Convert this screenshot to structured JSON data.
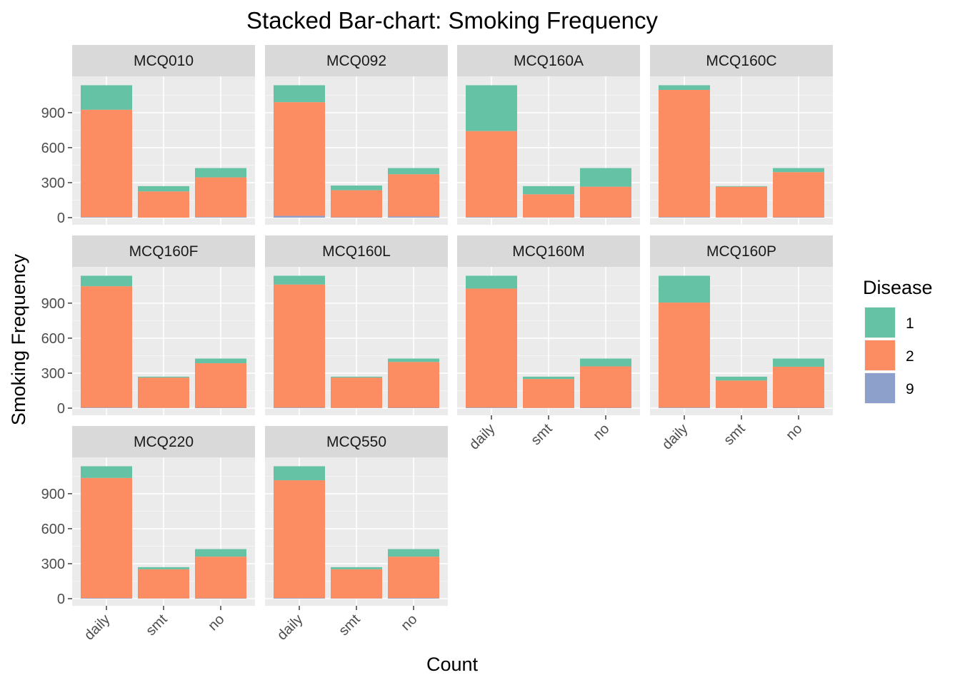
{
  "chart_data": {
    "type": "bar",
    "stacked": true,
    "title": "Stacked Bar-chart: Smoking Frequency",
    "xlabel": "Count",
    "ylabel": "Smoking Frequency",
    "categories": [
      "daily",
      "smt",
      "no"
    ],
    "ylim": [
      0,
      1150
    ],
    "yticks": [
      0,
      300,
      600,
      900
    ],
    "grid": true,
    "legend": {
      "title": "Disease",
      "position": "right",
      "entries": [
        {
          "label": "1",
          "color": "#66C2A5"
        },
        {
          "label": "2",
          "color": "#FC8D62"
        },
        {
          "label": "9",
          "color": "#8DA0CB"
        }
      ]
    },
    "colors": {
      "panel_bg": "#EBEBEB",
      "strip_bg": "#D9D9D9",
      "grid": "#FFFFFF"
    },
    "panels": [
      {
        "title": "MCQ010",
        "series": [
          {
            "name": "9",
            "values": [
              5,
              0,
              5
            ]
          },
          {
            "name": "2",
            "values": [
              920,
              225,
              340
            ]
          },
          {
            "name": "1",
            "values": [
              210,
              45,
              80
            ]
          }
        ]
      },
      {
        "title": "MCQ092",
        "series": [
          {
            "name": "9",
            "values": [
              15,
              3,
              10
            ]
          },
          {
            "name": "2",
            "values": [
              975,
              232,
              362
            ]
          },
          {
            "name": "1",
            "values": [
              145,
              40,
              53
            ]
          }
        ]
      },
      {
        "title": "MCQ160A",
        "series": [
          {
            "name": "9",
            "values": [
              5,
              2,
              3
            ]
          },
          {
            "name": "2",
            "values": [
              737,
              198,
              262
            ]
          },
          {
            "name": "1",
            "values": [
              393,
              70,
              160
            ]
          }
        ]
      },
      {
        "title": "MCQ160C",
        "series": [
          {
            "name": "9",
            "values": [
              5,
              2,
              3
            ]
          },
          {
            "name": "2",
            "values": [
              1090,
              263,
              387
            ]
          },
          {
            "name": "1",
            "values": [
              40,
              5,
              35
            ]
          }
        ]
      },
      {
        "title": "MCQ160F",
        "series": [
          {
            "name": "9",
            "values": [
              5,
              2,
              3
            ]
          },
          {
            "name": "2",
            "values": [
              1040,
              260,
              382
            ]
          },
          {
            "name": "1",
            "values": [
              90,
              8,
              40
            ]
          }
        ]
      },
      {
        "title": "MCQ160L",
        "series": [
          {
            "name": "9",
            "values": [
              5,
              2,
              3
            ]
          },
          {
            "name": "2",
            "values": [
              1055,
              260,
              393
            ]
          },
          {
            "name": "1",
            "values": [
              75,
              8,
              29
            ]
          }
        ]
      },
      {
        "title": "MCQ160M",
        "series": [
          {
            "name": "9",
            "values": [
              5,
              2,
              3
            ]
          },
          {
            "name": "2",
            "values": [
              1020,
              248,
              355
            ]
          },
          {
            "name": "1",
            "values": [
              110,
              20,
              67
            ]
          }
        ]
      },
      {
        "title": "MCQ160P",
        "series": [
          {
            "name": "9",
            "values": [
              5,
              2,
              3
            ]
          },
          {
            "name": "2",
            "values": [
              900,
              235,
              352
            ]
          },
          {
            "name": "1",
            "values": [
              230,
              33,
              70
            ]
          }
        ]
      },
      {
        "title": "MCQ220",
        "series": [
          {
            "name": "9",
            "values": [
              5,
              2,
              3
            ]
          },
          {
            "name": "2",
            "values": [
              1030,
              250,
              357
            ]
          },
          {
            "name": "1",
            "values": [
              100,
              18,
              65
            ]
          }
        ]
      },
      {
        "title": "MCQ550",
        "series": [
          {
            "name": "9",
            "values": [
              5,
              2,
              5
            ]
          },
          {
            "name": "2",
            "values": [
              1010,
              250,
              355
            ]
          },
          {
            "name": "1",
            "values": [
              120,
              18,
              65
            ]
          }
        ]
      }
    ]
  }
}
